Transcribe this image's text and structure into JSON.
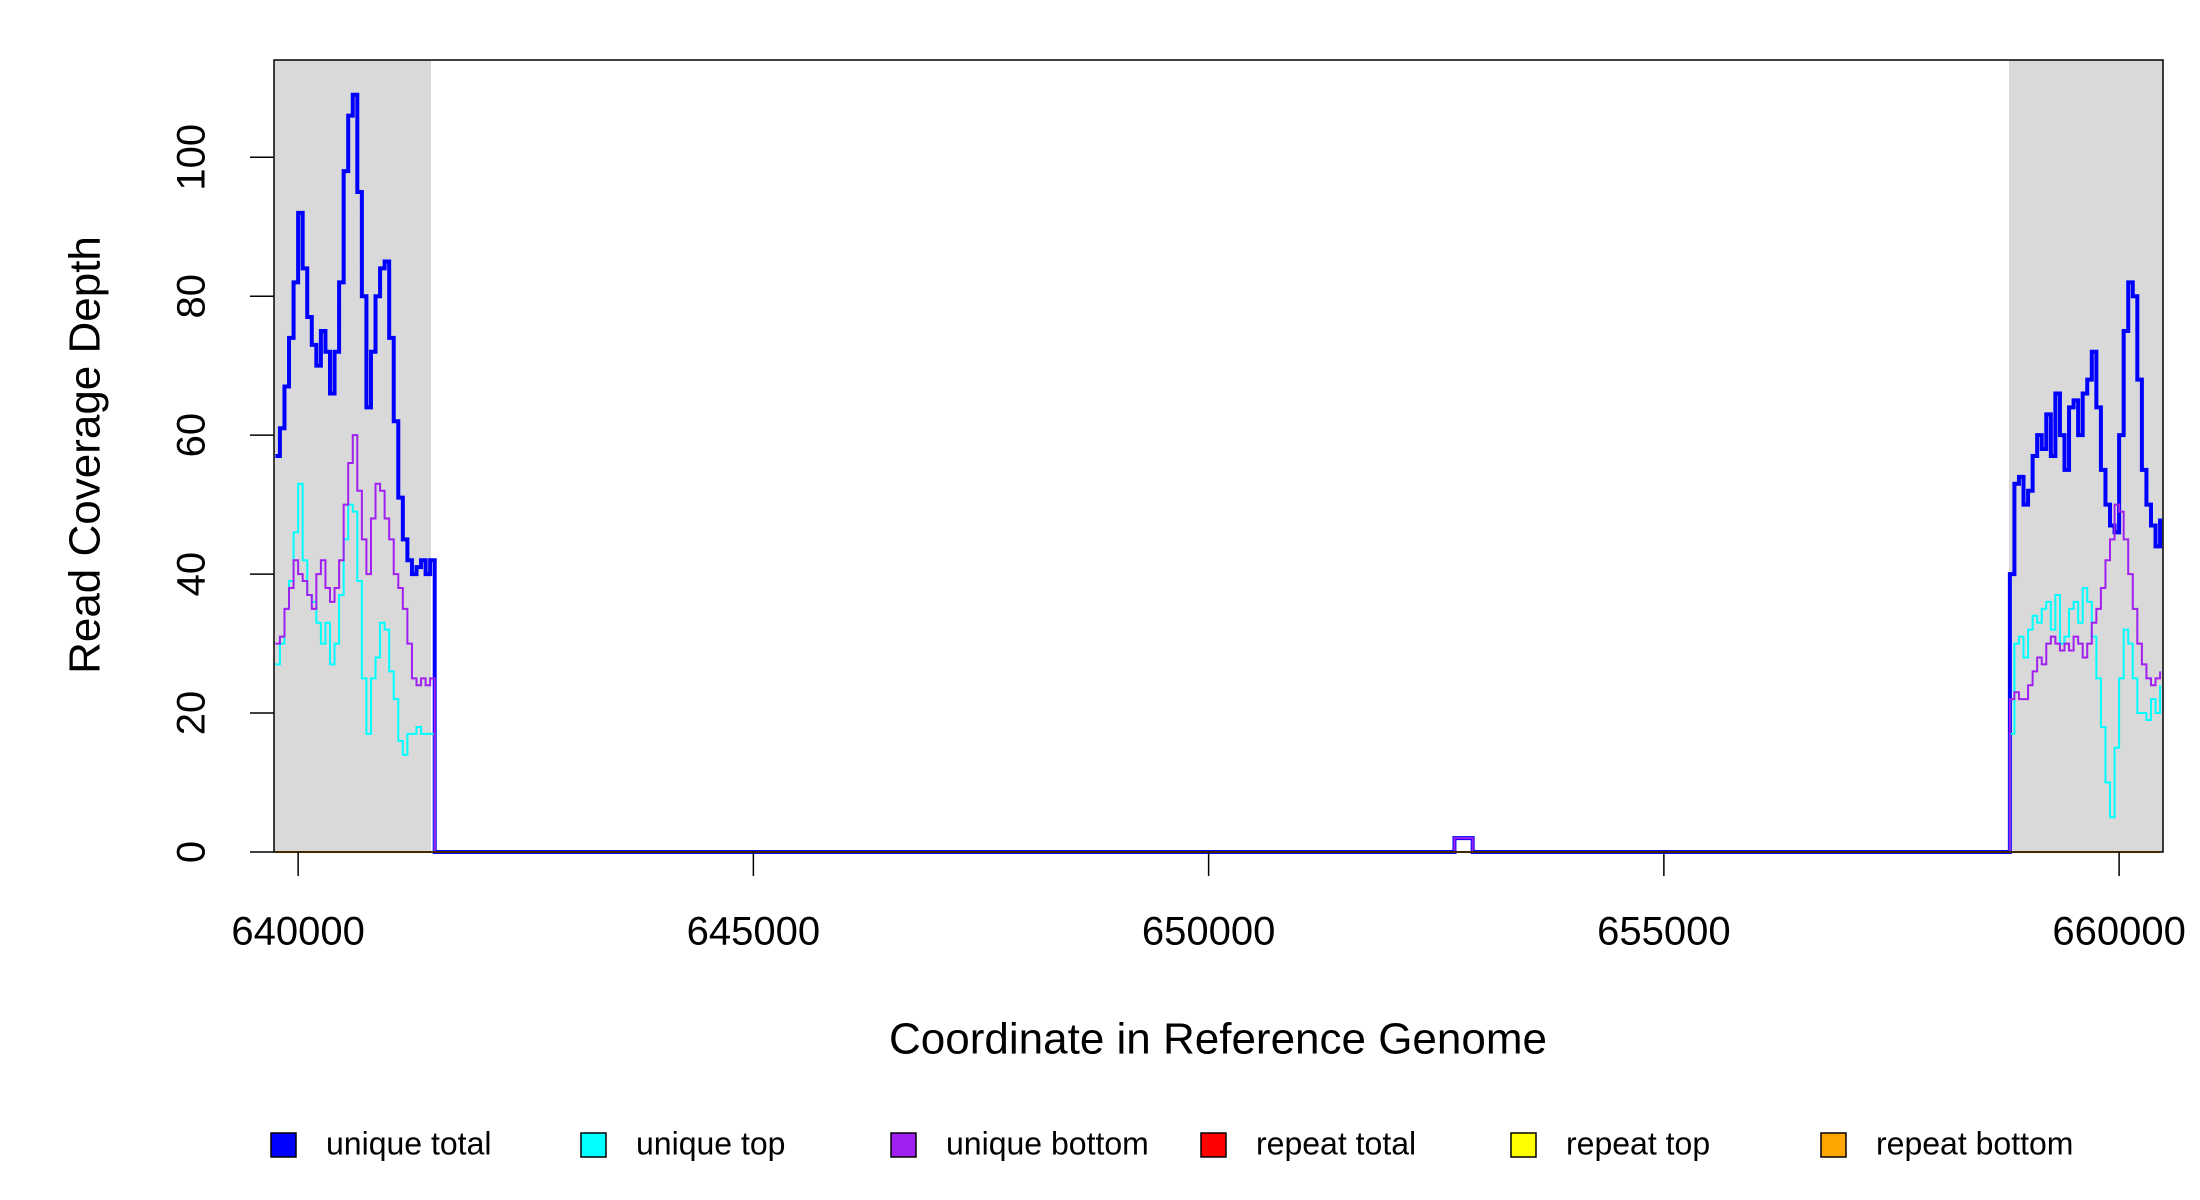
{
  "chart_data": {
    "type": "line",
    "x_label": "Coordinate in Reference Genome",
    "y_label": "Read Coverage Depth",
    "xlim": [
      639735,
      660482
    ],
    "ylim": [
      0,
      114
    ],
    "xticks": [
      640000,
      645000,
      650000,
      655000,
      660000
    ],
    "yticks": [
      0,
      20,
      40,
      60,
      80,
      100
    ],
    "shaded_regions": [
      [
        639735,
        641460
      ],
      [
        658790,
        660482
      ]
    ],
    "shade_color": "#d9d9d9",
    "legend": "bottom",
    "x": [
      639750,
      639800,
      639850,
      639900,
      639950,
      640000,
      640050,
      640100,
      640150,
      640200,
      640250,
      640300,
      640350,
      640400,
      640450,
      640500,
      640550,
      640600,
      640650,
      640700,
      640750,
      640800,
      640850,
      640900,
      640950,
      641000,
      641050,
      641100,
      641150,
      641200,
      641250,
      641300,
      641350,
      641400,
      641450,
      641500,
      652700,
      652900,
      658800,
      658850,
      658900,
      658950,
      659000,
      659050,
      659100,
      659150,
      659200,
      659250,
      659300,
      659350,
      659400,
      659450,
      659500,
      659550,
      659600,
      659650,
      659700,
      659750,
      659800,
      659850,
      659900,
      659950,
      660000,
      660050,
      660100,
      660150,
      660200,
      660250,
      660300,
      660350,
      660400,
      660450
    ],
    "series": [
      {
        "name": "unique total",
        "color": "#0000ff",
        "width": 4,
        "values": [
          57,
          61,
          67,
          74,
          82,
          92,
          84,
          77,
          73,
          70,
          75,
          72,
          66,
          72,
          82,
          98,
          106,
          109,
          95,
          80,
          64,
          72,
          80,
          84,
          85,
          74,
          62,
          51,
          45,
          42,
          40,
          41,
          42,
          40,
          42,
          0,
          2,
          0,
          40,
          53,
          54,
          50,
          52,
          57,
          60,
          58,
          63,
          57,
          66,
          60,
          55,
          64,
          65,
          60,
          66,
          68,
          72,
          64,
          55,
          50,
          47,
          46,
          60,
          75,
          82,
          80,
          68,
          55,
          50,
          47,
          44,
          48
        ]
      },
      {
        "name": "unique top",
        "color": "#00ffff",
        "width": 2,
        "values": [
          27,
          30,
          35,
          39,
          46,
          53,
          42,
          37,
          36,
          33,
          30,
          33,
          27,
          30,
          37,
          45,
          50,
          49,
          39,
          25,
          17,
          25,
          28,
          33,
          32,
          26,
          22,
          16,
          14,
          17,
          17,
          18,
          17,
          17,
          17,
          0,
          0,
          0,
          17,
          30,
          31,
          28,
          32,
          34,
          33,
          35,
          36,
          32,
          37,
          30,
          31,
          35,
          36,
          33,
          38,
          36,
          31,
          25,
          18,
          10,
          5,
          15,
          25,
          32,
          30,
          25,
          20,
          20,
          19,
          22,
          20,
          24
        ]
      },
      {
        "name": "unique bottom",
        "color": "#a020f0",
        "width": 2,
        "values": [
          30,
          31,
          35,
          38,
          42,
          40,
          39,
          37,
          35,
          40,
          42,
          38,
          36,
          38,
          42,
          50,
          56,
          60,
          52,
          45,
          40,
          48,
          53,
          52,
          48,
          45,
          40,
          38,
          35,
          30,
          25,
          24,
          25,
          24,
          25,
          0,
          2,
          0,
          22,
          23,
          22,
          22,
          24,
          26,
          28,
          27,
          30,
          31,
          30,
          29,
          30,
          29,
          31,
          30,
          28,
          30,
          33,
          35,
          38,
          42,
          45,
          50,
          49,
          45,
          40,
          35,
          30,
          27,
          25,
          24,
          25,
          26
        ]
      },
      {
        "name": "repeat total",
        "color": "#ff0000",
        "width": 2,
        "values": [
          0,
          0,
          0,
          0,
          0,
          0,
          0,
          0,
          0,
          0,
          0,
          0,
          0,
          0,
          0,
          0,
          0,
          0,
          0,
          0,
          0,
          0,
          0,
          0,
          0,
          0,
          0,
          0,
          0,
          0,
          0,
          0,
          0,
          0,
          0,
          0,
          0,
          0,
          0,
          0,
          0,
          0,
          0,
          0,
          0,
          0,
          0,
          0,
          0,
          0,
          0,
          0,
          0,
          0,
          0,
          0,
          0,
          0,
          0,
          0,
          0,
          0,
          0,
          0,
          0,
          0,
          0,
          0,
          0,
          0,
          0,
          0
        ]
      },
      {
        "name": "repeat top",
        "color": "#ffff00",
        "width": 2,
        "values": [
          0,
          0,
          0,
          0,
          0,
          0,
          0,
          0,
          0,
          0,
          0,
          0,
          0,
          0,
          0,
          0,
          0,
          0,
          0,
          0,
          0,
          0,
          0,
          0,
          0,
          0,
          0,
          0,
          0,
          0,
          0,
          0,
          0,
          0,
          0,
          0,
          0,
          0,
          0,
          0,
          0,
          0,
          0,
          0,
          0,
          0,
          0,
          0,
          0,
          0,
          0,
          0,
          0,
          0,
          0,
          0,
          0,
          0,
          0,
          0,
          0,
          0,
          0,
          0,
          0,
          0,
          0,
          0,
          0,
          0,
          0,
          0
        ]
      },
      {
        "name": "repeat bottom",
        "color": "#ffa500",
        "width": 2,
        "values": [
          0,
          0,
          0,
          0,
          0,
          0,
          0,
          0,
          0,
          0,
          0,
          0,
          0,
          0,
          0,
          0,
          0,
          0,
          0,
          0,
          0,
          0,
          0,
          0,
          0,
          0,
          0,
          0,
          0,
          0,
          0,
          0,
          0,
          0,
          0,
          0,
          0,
          0,
          0,
          0,
          0,
          0,
          0,
          0,
          0,
          0,
          0,
          0,
          0,
          0,
          0,
          0,
          0,
          0,
          0,
          0,
          0,
          0,
          0,
          0,
          0,
          0,
          0,
          0,
          0,
          0,
          0,
          0,
          0,
          0,
          0,
          0
        ]
      }
    ]
  }
}
